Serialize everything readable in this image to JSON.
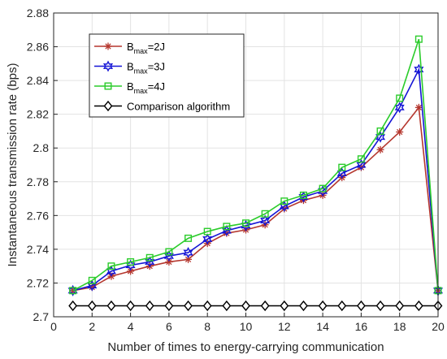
{
  "chart_data": {
    "type": "line",
    "xlabel": "Number of times to energy-carrying communication",
    "ylabel": "Instantaneous transmission rate (bps)",
    "xlim": [
      0,
      20
    ],
    "ylim": [
      2.7,
      2.88
    ],
    "x_ticks": [
      0,
      2,
      4,
      6,
      8,
      10,
      12,
      14,
      16,
      18,
      20
    ],
    "y_ticks": [
      2.7,
      2.72,
      2.74,
      2.76,
      2.78,
      2.8,
      2.82,
      2.84,
      2.86,
      2.88
    ],
    "grid": true,
    "legend_position": "top-left",
    "x": [
      1,
      2,
      3,
      4,
      5,
      6,
      7,
      8,
      9,
      10,
      11,
      12,
      13,
      14,
      15,
      16,
      17,
      18,
      19,
      20
    ],
    "series": [
      {
        "name": "B_max=2J",
        "legend": {
          "base": "B",
          "sub": "max",
          "rest": "=2J"
        },
        "color": "#b5372e",
        "marker": "asterisk",
        "values": [
          2.7155,
          2.7175,
          2.724,
          2.727,
          2.73,
          2.7325,
          2.734,
          2.7435,
          2.7495,
          2.7515,
          2.7545,
          2.764,
          2.769,
          2.772,
          2.7825,
          2.7885,
          2.799,
          2.8095,
          2.824,
          2.7155
        ]
      },
      {
        "name": "B_max=3J",
        "legend": {
          "base": "B",
          "sub": "max",
          "rest": "=3J"
        },
        "color": "#1414d6",
        "marker": "hexagram",
        "values": [
          2.7155,
          2.7185,
          2.727,
          2.7305,
          2.7325,
          2.736,
          2.738,
          2.746,
          2.751,
          2.754,
          2.757,
          2.7655,
          2.771,
          2.7745,
          2.785,
          2.79,
          2.8065,
          2.824,
          2.8465,
          2.7155
        ]
      },
      {
        "name": "B_max=4J",
        "legend": {
          "base": "B",
          "sub": "max",
          "rest": "=4J"
        },
        "color": "#2bcc2b",
        "marker": "square",
        "values": [
          2.7155,
          2.7215,
          2.73,
          2.7325,
          2.735,
          2.7385,
          2.7465,
          2.7505,
          2.7535,
          2.7555,
          2.761,
          2.7685,
          2.772,
          2.776,
          2.7885,
          2.7935,
          2.81,
          2.8295,
          2.8645,
          2.7155
        ]
      },
      {
        "name": "Comparison algorithm",
        "legend": {
          "base": "Comparison algorithm",
          "sub": "",
          "rest": ""
        },
        "color": "#000000",
        "marker": "diamond",
        "values": [
          2.7065,
          2.7065,
          2.7065,
          2.7065,
          2.7065,
          2.7065,
          2.7065,
          2.7065,
          2.7065,
          2.7065,
          2.7065,
          2.7065,
          2.7065,
          2.7065,
          2.7065,
          2.7065,
          2.7065,
          2.7065,
          2.7065,
          2.7065
        ]
      }
    ]
  }
}
